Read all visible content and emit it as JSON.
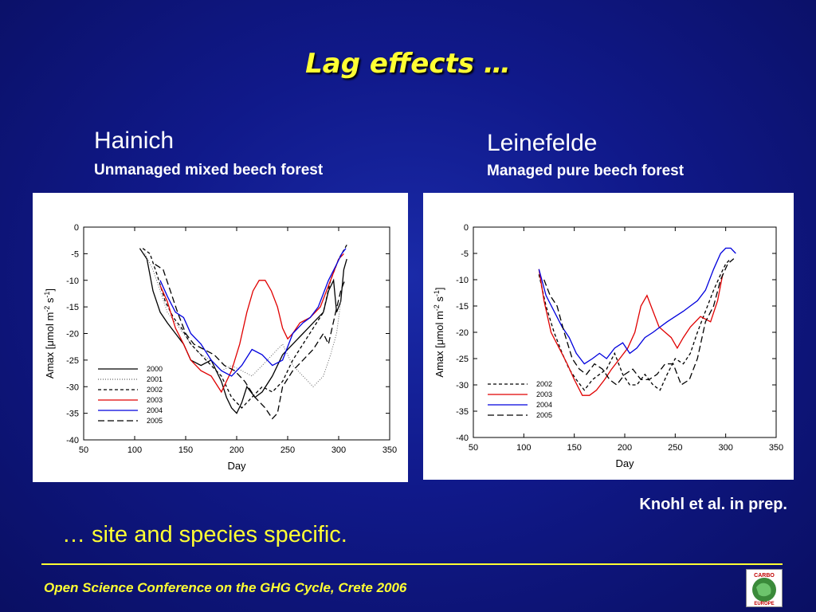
{
  "slide": {
    "title": "Lag effects …",
    "tagline": "… site and species specific.",
    "credit": "Knohl et al. in prep.",
    "footer": "Open Science Conference on the GHG Cycle, Crete 2006",
    "logo_text": "CARBO EUROPE"
  },
  "left": {
    "site": "Hainich",
    "description": "Unmanaged mixed beech forest"
  },
  "right": {
    "site": "Leinefelde",
    "description": "Managed pure beech forest"
  },
  "chart_data": [
    {
      "type": "line",
      "xlabel": "Day",
      "ylabel": "Amax [μmol m-2 s-1]",
      "xlim": [
        50,
        350
      ],
      "ylim": [
        -40,
        0
      ],
      "xticks": [
        50,
        100,
        150,
        200,
        250,
        300,
        350
      ],
      "yticks": [
        0,
        -5,
        -10,
        -15,
        -20,
        -25,
        -30,
        -35,
        -40
      ],
      "legend_position": "lower-left",
      "series": [
        {
          "name": "2000",
          "color": "#000000",
          "dash": "solid",
          "x": [
            105,
            112,
            118,
            125,
            132,
            140,
            148,
            155,
            165,
            175,
            185,
            190,
            195,
            200,
            205,
            210,
            218,
            225,
            235,
            245,
            255,
            265,
            275,
            285,
            290,
            295,
            298,
            302,
            305,
            308
          ],
          "y": [
            -4,
            -6,
            -12,
            -16,
            -18,
            -20,
            -22,
            -25,
            -26,
            -25,
            -29,
            -32,
            -34,
            -35,
            -33,
            -30,
            -32,
            -31,
            -28,
            -24,
            -22,
            -20,
            -18,
            -16,
            -12,
            -10,
            -16,
            -14,
            -8,
            -6
          ]
        },
        {
          "name": "2001",
          "color": "#666666",
          "dash": "dotted",
          "x": [
            110,
            118,
            125,
            132,
            140,
            148,
            155,
            165,
            175,
            185,
            195,
            205,
            215,
            225,
            235,
            245,
            255,
            265,
            275,
            285,
            292,
            298,
            302
          ],
          "y": [
            -5,
            -8,
            -12,
            -16,
            -18,
            -20,
            -22,
            -24,
            -25,
            -27,
            -26,
            -27,
            -28,
            -26,
            -24,
            -22,
            -26,
            -28,
            -30,
            -28,
            -24,
            -20,
            -14
          ]
        },
        {
          "name": "2002",
          "color": "#000000",
          "dash": "4,3",
          "x": [
            108,
            115,
            122,
            130,
            138,
            146,
            155,
            165,
            175,
            185,
            195,
            205,
            215,
            225,
            235,
            245,
            255,
            265,
            275,
            285,
            292,
            300,
            306,
            309
          ],
          "y": [
            -4,
            -5,
            -9,
            -14,
            -17,
            -19,
            -22,
            -24,
            -26,
            -28,
            -32,
            -34,
            -32,
            -30,
            -31,
            -29,
            -25,
            -22,
            -19,
            -16,
            -10,
            -6,
            -4,
            -3
          ]
        },
        {
          "name": "2003",
          "color": "#e00000",
          "dash": "solid",
          "x": [
            125,
            132,
            140,
            148,
            155,
            165,
            175,
            185,
            195,
            203,
            210,
            216,
            222,
            228,
            234,
            240,
            245,
            250,
            255,
            262,
            272,
            282,
            292,
            300,
            305
          ],
          "y": [
            -11,
            -14,
            -19,
            -22,
            -25,
            -27,
            -28,
            -31,
            -27,
            -22,
            -16,
            -12,
            -10,
            -10,
            -12,
            -15,
            -19,
            -21,
            -20,
            -18,
            -17,
            -15,
            -10,
            -6,
            -5
          ]
        },
        {
          "name": "2004",
          "color": "#0000dd",
          "dash": "solid",
          "x": [
            125,
            132,
            140,
            148,
            155,
            165,
            175,
            185,
            195,
            205,
            215,
            225,
            235,
            245,
            255,
            265,
            272,
            280,
            290,
            298,
            303,
            307
          ],
          "y": [
            -10,
            -13,
            -16,
            -17,
            -20,
            -22,
            -25,
            -27,
            -28,
            -26,
            -23,
            -24,
            -26,
            -25,
            -20,
            -18,
            -17,
            -15,
            -10,
            -7,
            -5,
            -4
          ]
        },
        {
          "name": "2005",
          "color": "#000000",
          "dash": "8,4",
          "x": [
            120,
            128,
            135,
            142,
            150,
            158,
            168,
            178,
            188,
            198,
            208,
            218,
            228,
            235,
            240,
            245,
            255,
            265,
            275,
            285,
            290,
            297,
            302,
            306
          ],
          "y": [
            -7,
            -8,
            -12,
            -16,
            -20,
            -22,
            -23,
            -24,
            -26,
            -27,
            -29,
            -32,
            -34,
            -36,
            -35,
            -30,
            -27,
            -25,
            -23,
            -20,
            -22,
            -16,
            -12,
            -10
          ]
        }
      ]
    },
    {
      "type": "line",
      "xlabel": "Day",
      "ylabel": "Amax [μmol m-2 s-1]",
      "xlim": [
        50,
        350
      ],
      "ylim": [
        -40,
        0
      ],
      "xticks": [
        50,
        100,
        150,
        200,
        250,
        300,
        350
      ],
      "yticks": [
        0,
        -5,
        -10,
        -15,
        -20,
        -25,
        -30,
        -35,
        -40
      ],
      "legend_position": "lower-left",
      "series": [
        {
          "name": "2002",
          "color": "#000000",
          "dash": "4,3",
          "x": [
            115,
            122,
            130,
            138,
            145,
            152,
            160,
            168,
            175,
            182,
            190,
            198,
            205,
            212,
            220,
            228,
            235,
            242,
            250,
            258,
            265,
            272,
            280,
            288,
            295,
            300,
            305
          ],
          "y": [
            -9,
            -15,
            -20,
            -24,
            -27,
            -29,
            -31,
            -29,
            -28,
            -27,
            -24,
            -28,
            -30,
            -30,
            -28,
            -30,
            -31,
            -28,
            -25,
            -26,
            -24,
            -20,
            -16,
            -12,
            -9,
            -7,
            -6
          ]
        },
        {
          "name": "2003",
          "color": "#e00000",
          "dash": "solid",
          "x": [
            115,
            120,
            127,
            135,
            143,
            150,
            158,
            165,
            172,
            180,
            187,
            195,
            203,
            210,
            216,
            222,
            228,
            234,
            240,
            246,
            252,
            258,
            265,
            275,
            285,
            292,
            297
          ],
          "y": [
            -8,
            -14,
            -20,
            -23,
            -26,
            -29,
            -32,
            -32,
            -31,
            -29,
            -27,
            -25,
            -23,
            -20,
            -15,
            -13,
            -16,
            -19,
            -20,
            -21,
            -23,
            -21,
            -19,
            -17,
            -18,
            -14,
            -9
          ]
        },
        {
          "name": "2004",
          "color": "#0000dd",
          "dash": "solid",
          "x": [
            115,
            122,
            130,
            138,
            145,
            152,
            160,
            168,
            175,
            182,
            190,
            198,
            205,
            212,
            220,
            228,
            235,
            242,
            250,
            258,
            265,
            272,
            280,
            288,
            295,
            300,
            305,
            310
          ],
          "y": [
            -8,
            -13,
            -16,
            -19,
            -21,
            -24,
            -26,
            -25,
            -24,
            -25,
            -23,
            -22,
            -24,
            -23,
            -21,
            -20,
            -19,
            -18,
            -17,
            -16,
            -15,
            -14,
            -12,
            -8,
            -5,
            -4,
            -4,
            -5
          ]
        },
        {
          "name": "2005",
          "color": "#000000",
          "dash": "8,4",
          "x": [
            120,
            126,
            133,
            140,
            148,
            155,
            162,
            170,
            178,
            185,
            192,
            200,
            208,
            216,
            224,
            232,
            240,
            248,
            256,
            264,
            272,
            280,
            288,
            295,
            302,
            308
          ],
          "y": [
            -10,
            -13,
            -15,
            -20,
            -25,
            -27,
            -28,
            -26,
            -27,
            -29,
            -30,
            -28,
            -27,
            -29,
            -29,
            -28,
            -26,
            -26,
            -30,
            -29,
            -25,
            -18,
            -15,
            -10,
            -7,
            -6
          ]
        }
      ]
    }
  ]
}
